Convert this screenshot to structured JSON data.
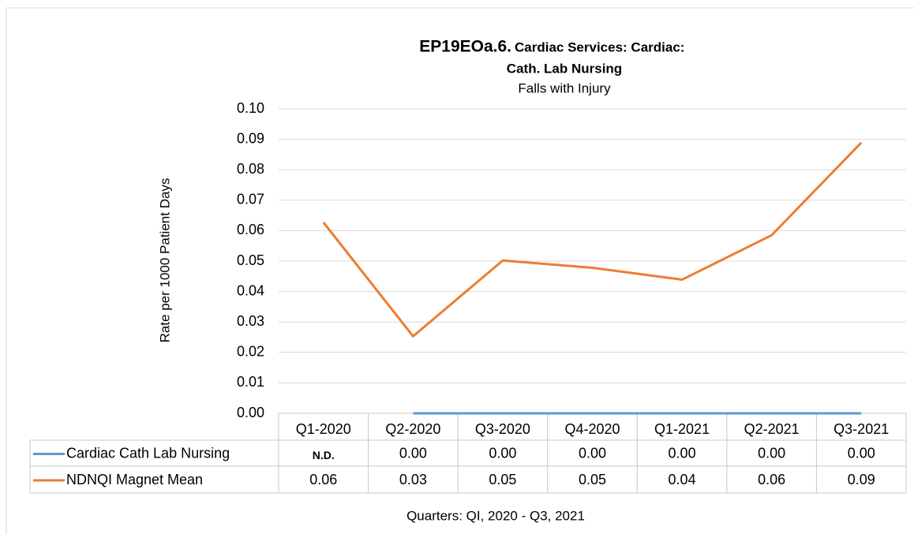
{
  "chart_data": {
    "type": "line",
    "title": [
      "EP19EOa.6.",
      "Cardiac Services: Cardiac:",
      "Cath. Lab Nursing"
    ],
    "subtitle": "Falls with Injury",
    "y_label": "Rate per 1000 Patient Days",
    "x_label": "Quarters: QI, 2020 - Q3, 2021",
    "categories": [
      "Q1-2020",
      "Q2-2020",
      "Q3-2020",
      "Q4-2020",
      "Q1-2021",
      "Q2-2021",
      "Q3-2021"
    ],
    "series": [
      {
        "name": "Cardiac Cath Lab Nursing",
        "color": "#5b9bd5",
        "values": [
          null,
          0,
          0,
          0,
          0,
          0,
          0
        ],
        "value_labels": [
          "N.D.",
          "0.00",
          "0.00",
          "0.00",
          "0.00",
          "0.00",
          "0.00"
        ]
      },
      {
        "name": "NDNQI Magnet Mean",
        "color": "#ed7d31",
        "values": [
          0.0627,
          0.0253,
          0.0502,
          0.0478,
          0.0439,
          0.0585,
          0.0889
        ],
        "value_labels": [
          "0.06",
          "0.03",
          "0.05",
          "0.05",
          "0.04",
          "0.06",
          "0.09"
        ]
      }
    ],
    "ylim": [
      0,
      0.1
    ],
    "yticks": [
      {
        "value": 0,
        "label": "0.00"
      },
      {
        "value": 0.01,
        "label": "0.01"
      },
      {
        "value": 0.02,
        "label": "0.02"
      },
      {
        "value": 0.03,
        "label": "0.03"
      },
      {
        "value": 0.04,
        "label": "0.04"
      },
      {
        "value": 0.05,
        "label": "0.05"
      },
      {
        "value": 0.06,
        "label": "0.06"
      },
      {
        "value": 0.07,
        "label": "0.07"
      },
      {
        "value": 0.08,
        "label": "0.08"
      },
      {
        "value": 0.09,
        "label": "0.09"
      },
      {
        "value": 0.1,
        "label": "0.10"
      }
    ],
    "grid": true
  }
}
